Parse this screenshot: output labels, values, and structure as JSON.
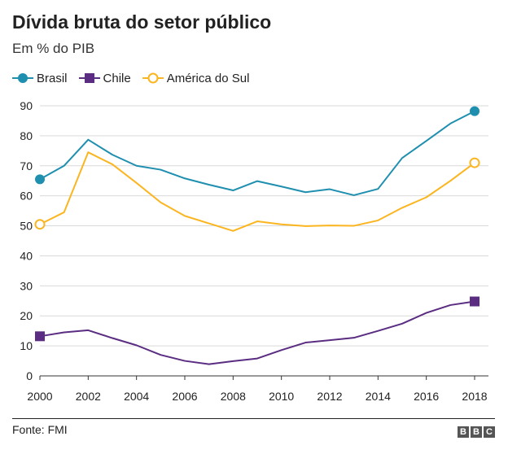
{
  "chart_data": {
    "type": "line",
    "title": "Dívida bruta do setor público",
    "subtitle": "Em % do PIB",
    "xlabel": "",
    "ylabel": "",
    "x": [
      2000,
      2001,
      2002,
      2003,
      2004,
      2005,
      2006,
      2007,
      2008,
      2009,
      2010,
      2011,
      2012,
      2013,
      2014,
      2015,
      2016,
      2017,
      2018
    ],
    "x_tick_labels": [
      "2000",
      "2002",
      "2004",
      "2006",
      "2008",
      "2010",
      "2012",
      "2014",
      "2016",
      "2018"
    ],
    "y_tick_labels": [
      "0",
      "10",
      "20",
      "30",
      "40",
      "50",
      "60",
      "70",
      "80",
      "90"
    ],
    "ylim": [
      0,
      90
    ],
    "grid": true,
    "legend_position": "top-left",
    "series": [
      {
        "name": "Brasil",
        "color": "#1f8fb0",
        "marker": "filled-circle",
        "values": [
          65.5,
          70,
          78.7,
          73.7,
          70,
          68.7,
          65.8,
          63.7,
          61.8,
          64.9,
          63.1,
          61.2,
          62.2,
          60.2,
          62.3,
          72.6,
          78.3,
          84.1,
          88.2
        ]
      },
      {
        "name": "Chile",
        "color": "#5a2d82",
        "marker": "square",
        "values": [
          13.2,
          14.5,
          15.2,
          12.6,
          10.2,
          7,
          5,
          3.9,
          4.9,
          5.8,
          8.6,
          11.1,
          11.9,
          12.7,
          15,
          17.4,
          21,
          23.6,
          24.8
        ]
      },
      {
        "name": "América do Sul",
        "color": "#fbb520",
        "marker": "hollow-circle",
        "values": [
          50.5,
          54.5,
          74.5,
          70.5,
          64.3,
          57.8,
          53.3,
          50.8,
          48.3,
          51.5,
          50.5,
          49.9,
          50.1,
          50,
          51.8,
          56,
          59.5,
          65,
          71
        ]
      }
    ]
  },
  "legend": {
    "brasil": "Brasil",
    "chile": "Chile",
    "america": "América do Sul"
  },
  "footer": {
    "source": "Fonte: FMI",
    "logo": [
      "B",
      "B",
      "C"
    ]
  }
}
